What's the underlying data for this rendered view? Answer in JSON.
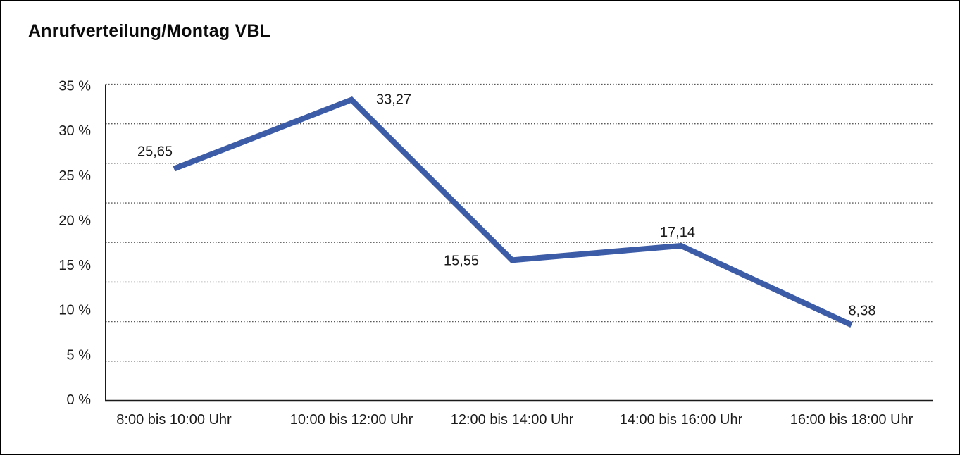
{
  "page": {
    "background_color": "#ffffff",
    "frame_border_color": "#000000"
  },
  "chart_data": {
    "type": "line",
    "title": "Anrufverteilung/Montag VBL",
    "categories": [
      "8:00 bis 10:00 Uhr",
      "10:00 bis 12:00 Uhr",
      "12:00 bis 14:00 Uhr",
      "14:00 bis 16:00 Uhr",
      "16:00 bis 18:00 Uhr"
    ],
    "values": [
      25.65,
      33.27,
      15.55,
      17.14,
      8.38
    ],
    "value_labels": [
      "25,65",
      "33,27",
      "15,55",
      "17,14",
      "8,38"
    ],
    "y_tick_labels": [
      "35 %",
      "30 %",
      "25 %",
      "20 %",
      "15 %",
      "10 %",
      "5 %",
      "0 %"
    ],
    "ylim": [
      0,
      35
    ],
    "y_tick_step": 5,
    "xlabel": "",
    "ylabel": "",
    "legend": "none",
    "grid": "horizontal-dotted",
    "line_color": "#3D5CA8",
    "grid_color": "#595959",
    "axis_color": "#1a1a1a",
    "text_color": "#1a1a1a"
  }
}
